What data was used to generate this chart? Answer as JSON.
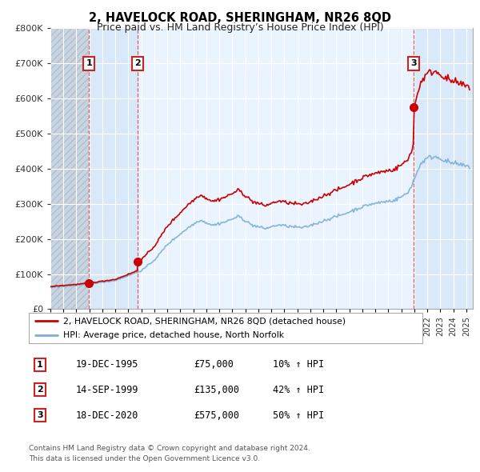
{
  "title": "2, HAVELOCK ROAD, SHERINGHAM, NR26 8QD",
  "subtitle": "Price paid vs. HM Land Registry’s House Price Index (HPI)",
  "transactions": [
    {
      "label": "1",
      "date": 1995.96,
      "price": 75000,
      "pct": "10%",
      "date_str": "19-DEC-1995"
    },
    {
      "label": "2",
      "date": 1999.71,
      "price": 135000,
      "pct": "42%",
      "date_str": "14-SEP-1999"
    },
    {
      "label": "3",
      "date": 2020.96,
      "price": 575000,
      "pct": "50%",
      "date_str": "18-DEC-2020"
    }
  ],
  "legend_line1": "2, HAVELOCK ROAD, SHERINGHAM, NR26 8QD (detached house)",
  "legend_line2": "HPI: Average price, detached house, North Norfolk",
  "footer1": "Contains HM Land Registry data © Crown copyright and database right 2024.",
  "footer2": "This data is licensed under the Open Government Licence v3.0.",
  "hatch_region_end": 1995.96,
  "xmin": 1993.0,
  "xmax": 2025.5,
  "ymin": 0,
  "ymax": 800000,
  "yticks": [
    0,
    100000,
    200000,
    300000,
    400000,
    500000,
    600000,
    700000,
    800000
  ],
  "ytick_labels": [
    "£0",
    "£100K",
    "£200K",
    "£300K",
    "£400K",
    "£500K",
    "£600K",
    "£700K",
    "£800K"
  ],
  "house_color": "#cc0000",
  "hpi_color": "#7bafd4",
  "bg_hatch_color": "#c8d4e4",
  "bg_band_color": "#d8e8f8",
  "grid_color": "#ffffff",
  "box_color": "#cc2222",
  "title_fontsize": 10.5,
  "subtitle_fontsize": 9
}
